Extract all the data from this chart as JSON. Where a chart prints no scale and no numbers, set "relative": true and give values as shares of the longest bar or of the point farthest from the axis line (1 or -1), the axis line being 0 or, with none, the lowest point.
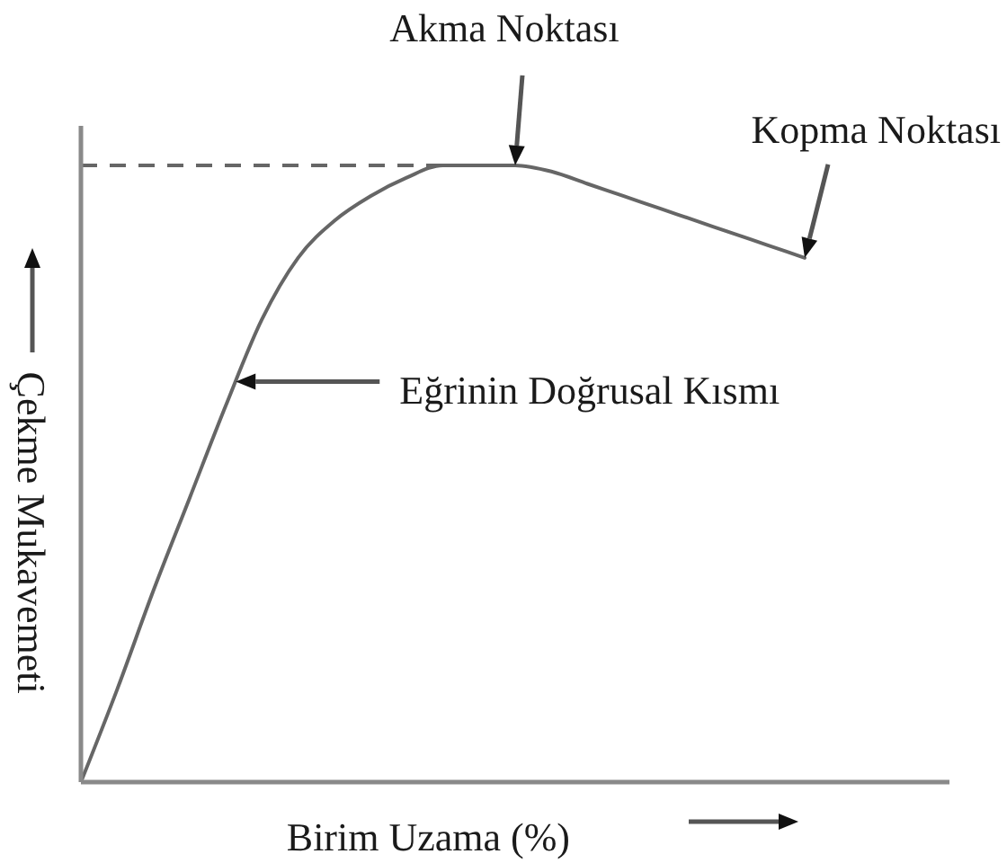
{
  "chart_data": {
    "type": "line",
    "relative": true,
    "categories": [
      null,
      null,
      null,
      null,
      null,
      null,
      null,
      null,
      null,
      null,
      null,
      null,
      null,
      null,
      null,
      null,
      null,
      null,
      null,
      null,
      null,
      null,
      null,
      null,
      null
    ],
    "series": [
      {
        "color": "#666666",
        "values": [
          0,
          0.15,
          0.31,
          0.46,
          0.61,
          0.75,
          0.85,
          0.91,
          0.95,
          0.98,
          1,
          1,
          1,
          0.99,
          0.97,
          0.95,
          0.93,
          0.91,
          0.89,
          0.87,
          0.85,
          null,
          null,
          null,
          null
        ]
      }
    ],
    "xlabel": "Birim Uzama (%)",
    "ylabel": "Çekme Mukavemeti",
    "annotations": [
      {
        "text": "Akma Noktası",
        "y": 1
      },
      "Kopma Noktası",
      "Eğrinin Doğrusal Kısmı"
    ],
    "ref_lines": [
      {
        "axis": "y",
        "value": 1,
        "color": "#666666",
        "line_style": "dashed"
      }
    ],
    "marker": "none",
    "line_style": "solid"
  }
}
